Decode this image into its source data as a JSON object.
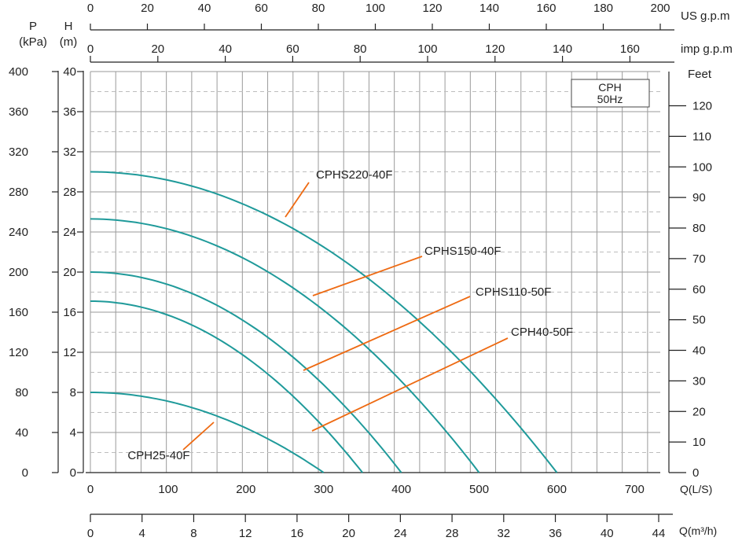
{
  "chart_data": {
    "type": "line",
    "badge": [
      "CPH",
      "50Hz"
    ],
    "x_axis": {
      "label": "Q(L/S)",
      "range": [
        0,
        733
      ],
      "ticks": [
        0,
        100,
        200,
        300,
        400,
        500,
        600,
        700
      ]
    },
    "y_axis": {
      "label": [
        "H",
        "(m)"
      ],
      "range": [
        0,
        40
      ],
      "ticks": [
        0,
        4,
        8,
        12,
        16,
        20,
        24,
        28,
        32,
        36,
        40
      ]
    },
    "p_axis": {
      "label": [
        "P",
        "(kPa)"
      ],
      "range": [
        0,
        400
      ],
      "ticks": [
        0,
        40,
        80,
        120,
        160,
        200,
        240,
        280,
        320,
        360,
        400
      ]
    },
    "feet_axis": {
      "label": "Feet",
      "range": [
        0,
        131.2
      ],
      "ticks": [
        0,
        10,
        20,
        30,
        40,
        50,
        60,
        70,
        80,
        90,
        100,
        110,
        120
      ]
    },
    "usgpm_axis": {
      "label": "US g.p.m",
      "range": [
        0,
        200
      ],
      "ticks": [
        0,
        20,
        40,
        60,
        80,
        100,
        120,
        140,
        160,
        180,
        200
      ]
    },
    "impgpm_axis": {
      "label": "imp g.p.m",
      "range": [
        0,
        169
      ],
      "ticks": [
        0,
        20,
        40,
        60,
        80,
        100,
        120,
        140,
        160
      ]
    },
    "m3h_axis": {
      "label": "Q(m³/h)",
      "range": [
        0,
        44
      ],
      "ticks": [
        0,
        4,
        8,
        12,
        16,
        20,
        24,
        28,
        32,
        36,
        40,
        44
      ]
    },
    "series": [
      {
        "name": "CPHS220-40F",
        "shutoff_head": 30,
        "max_flow": 600
      },
      {
        "name": "CPHS150-40F",
        "shutoff_head": 25.3,
        "max_flow": 500
      },
      {
        "name": "CPHS110-50F",
        "shutoff_head": 20,
        "max_flow": 400
      },
      {
        "name": "CPH40-50F",
        "shutoff_head": 17.1,
        "max_flow": 350
      },
      {
        "name": "CPH25-40F",
        "shutoff_head": 8,
        "max_flow": 300
      }
    ],
    "colors": {
      "curve": "#1f9a9a",
      "leader": "#ee6a12"
    }
  }
}
